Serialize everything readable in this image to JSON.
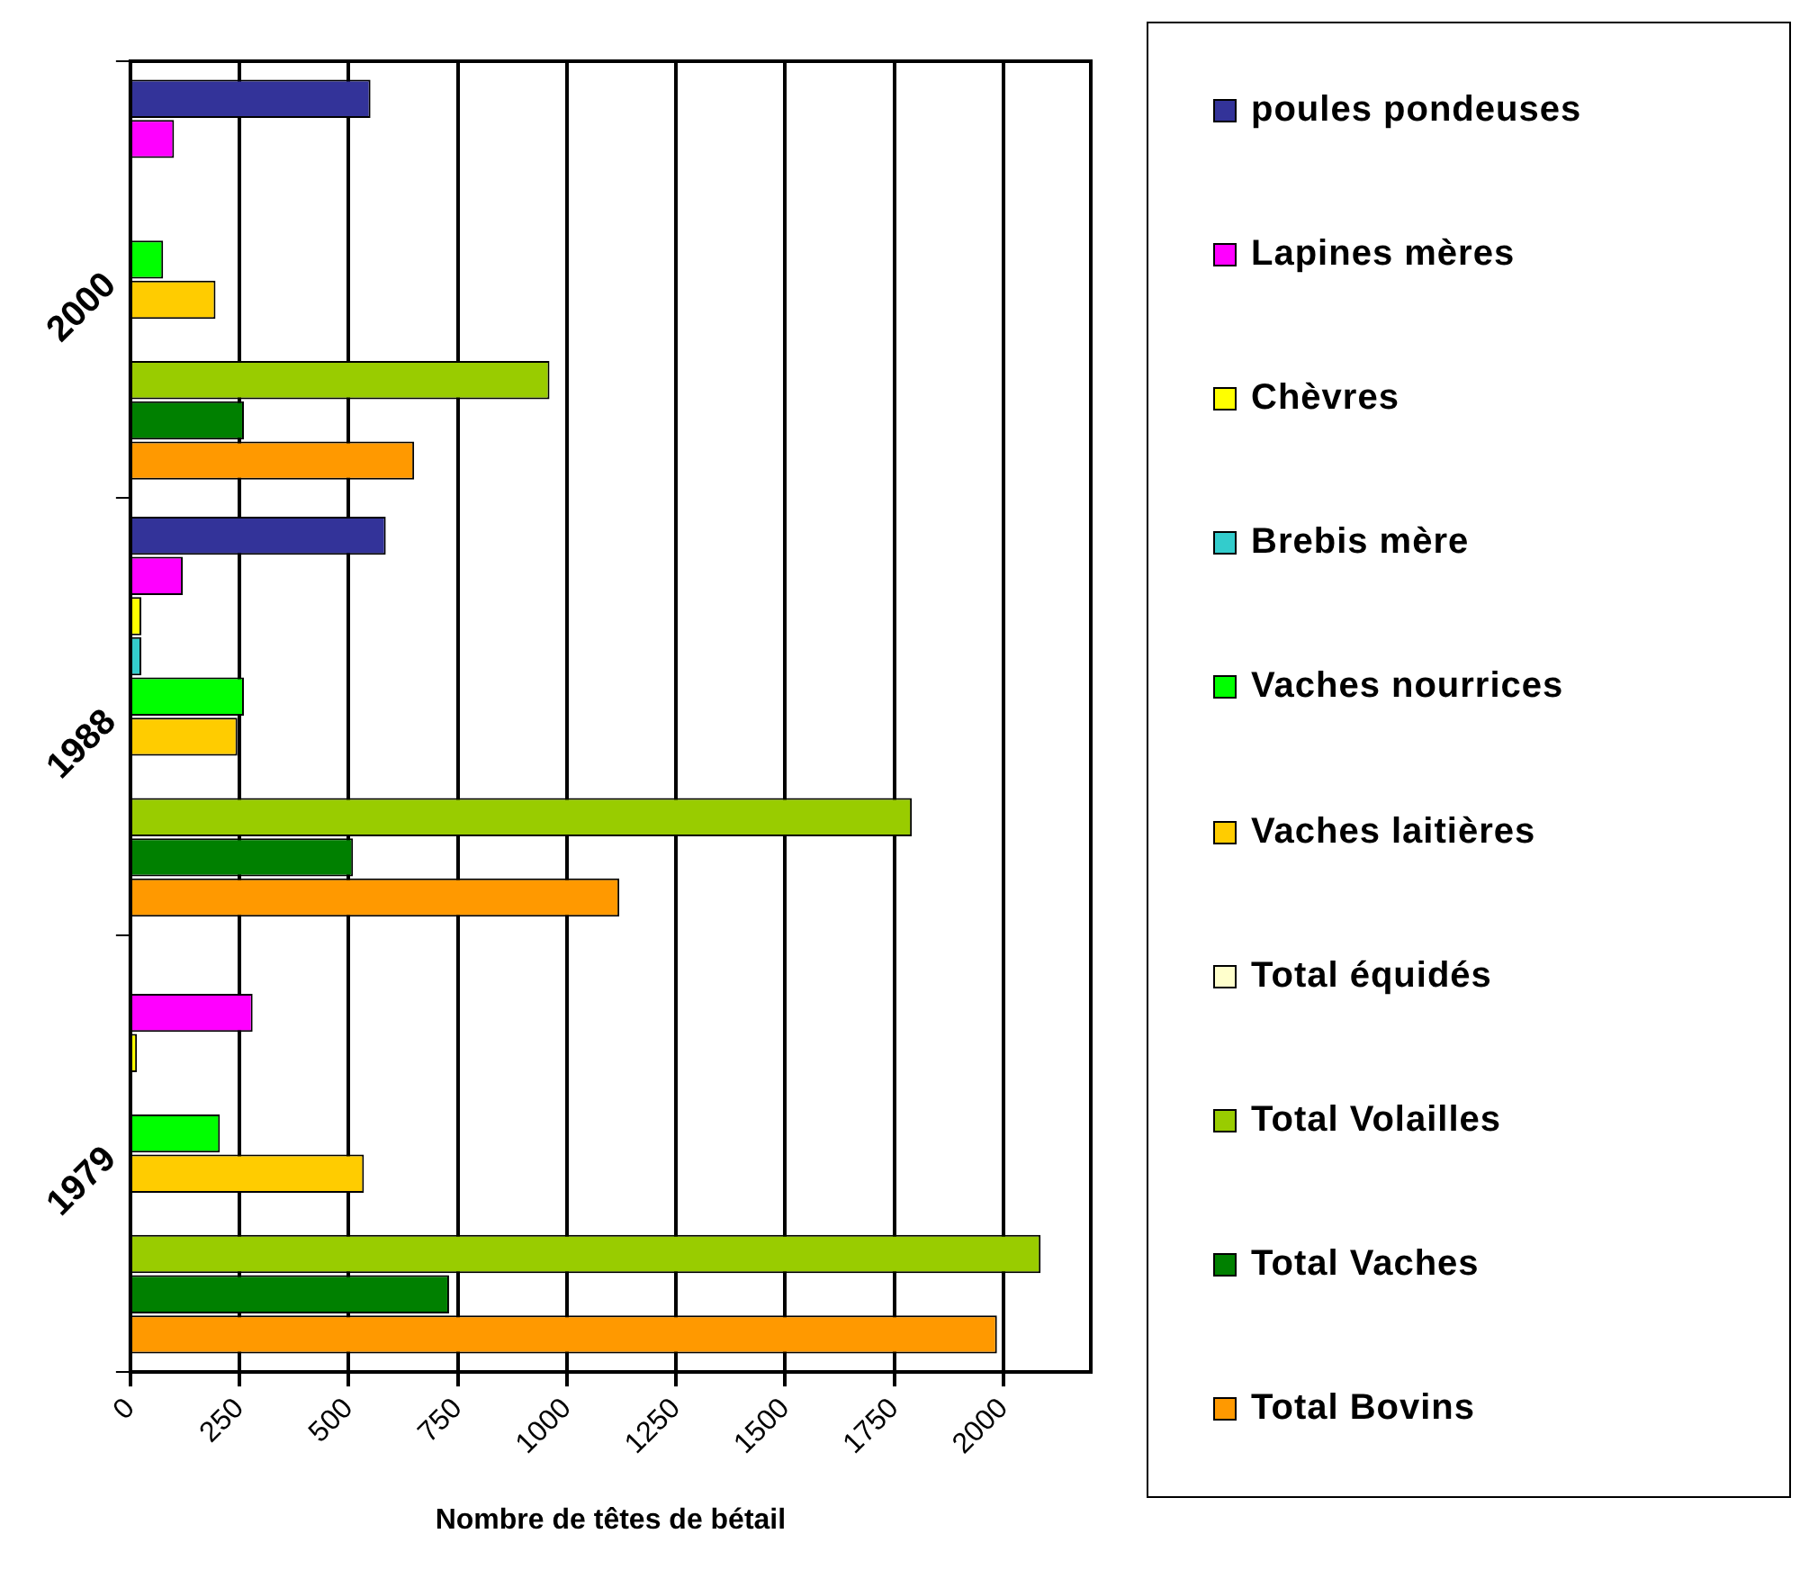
{
  "chart_data": {
    "type": "bar",
    "orientation": "horizontal",
    "xlabel": "Nombre de têtes de bétail",
    "categories": [
      "2000",
      "1988",
      "1979"
    ],
    "series": [
      {
        "name": "poules pondeuses",
        "color": "#333399",
        "values": [
          550,
          585,
          null
        ]
      },
      {
        "name": "Lapines mères",
        "color": "#ff00ff",
        "values": [
          100,
          120,
          280
        ]
      },
      {
        "name": "Chèvres",
        "color": "#ffff00",
        "values": [
          null,
          25,
          15
        ]
      },
      {
        "name": "Brebis mère",
        "color": "#33cccc",
        "values": [
          null,
          25,
          null
        ]
      },
      {
        "name": "Vaches nourrices",
        "color": "#00ff00",
        "values": [
          75,
          260,
          205
        ]
      },
      {
        "name": "Vaches laitières",
        "color": "#ffcc00",
        "values": [
          195,
          245,
          535
        ]
      },
      {
        "name": "Total équidés",
        "color": "#ffffcc",
        "values": [
          null,
          null,
          null
        ]
      },
      {
        "name": "Total Volailles",
        "color": "#99cc00",
        "values": [
          960,
          1790,
          2085
        ]
      },
      {
        "name": "Total Vaches",
        "color": "#008000",
        "values": [
          260,
          510,
          730
        ]
      },
      {
        "name": "Total Bovins",
        "color": "#ff9900",
        "values": [
          650,
          1120,
          1985
        ]
      }
    ],
    "xlim": [
      0,
      2200
    ],
    "xticks": [
      0,
      250,
      500,
      750,
      1000,
      1250,
      1500,
      1750,
      2000
    ],
    "grid": "x",
    "legend": "right"
  }
}
